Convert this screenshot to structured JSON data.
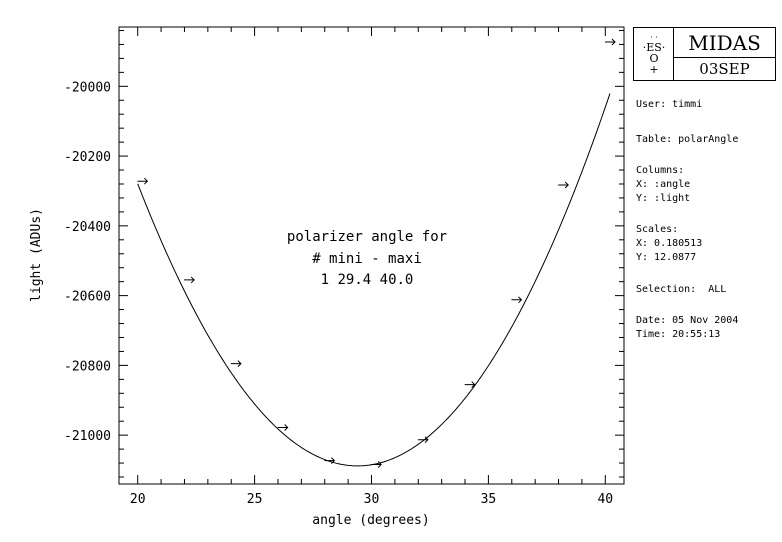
{
  "chart_data": {
    "type": "scatter",
    "xlabel": "angle (degrees)",
    "ylabel": "light (ADUs)",
    "xlim": [
      19.2,
      40.8
    ],
    "ylim": [
      -21140,
      -19830
    ],
    "xticks": [
      20,
      25,
      30,
      35,
      40
    ],
    "xtick_labels": [
      "20",
      "25",
      "30",
      "35",
      "40"
    ],
    "yticks": [
      -21000,
      -20800,
      -20600,
      -20400,
      -20200,
      -20000
    ],
    "ytick_labels": [
      "-21000",
      "-20800",
      "-20600",
      "-20400",
      "-20200",
      "-20000"
    ],
    "grid": false,
    "series": [
      {
        "marker": "arrow",
        "x": [
          20.2,
          22.2,
          24.2,
          26.2,
          28.2,
          30.2,
          32.2,
          34.2,
          36.2,
          38.2,
          40.2
        ],
        "y": [
          -20272,
          -20555,
          -20795,
          -20978,
          -21073,
          -21084,
          -21013,
          -20855,
          -20612,
          -20283,
          -19873
        ]
      }
    ],
    "fit_curve": {
      "type": "parabola",
      "vertex_x": 29.4,
      "vertex_y": -21088,
      "coef": 9.15,
      "x_range": [
        20.0,
        40.2
      ]
    },
    "annotation": {
      "line1": "polarizer angle for",
      "line2": "# mini - maxi",
      "line3": "1 29.4 40.0"
    }
  },
  "logo": {
    "eso_top": "· ·",
    "eso_mid": "·ES·",
    "eso_o": "O",
    "eso_bot": "+",
    "title": "MIDAS",
    "version": "03SEP"
  },
  "info": {
    "user": "User: timmi",
    "table": "Table: polarAngle",
    "columns_label": "Columns:",
    "col_x": "X: :angle",
    "col_y": "Y: :light",
    "scales_label": "Scales:",
    "scale_x": "X: 0.180513",
    "scale_y": "Y: 12.0877",
    "selection": "Selection:  ALL",
    "date": "Date: 05 Nov 2004",
    "time": "Time: 20:55:13"
  }
}
